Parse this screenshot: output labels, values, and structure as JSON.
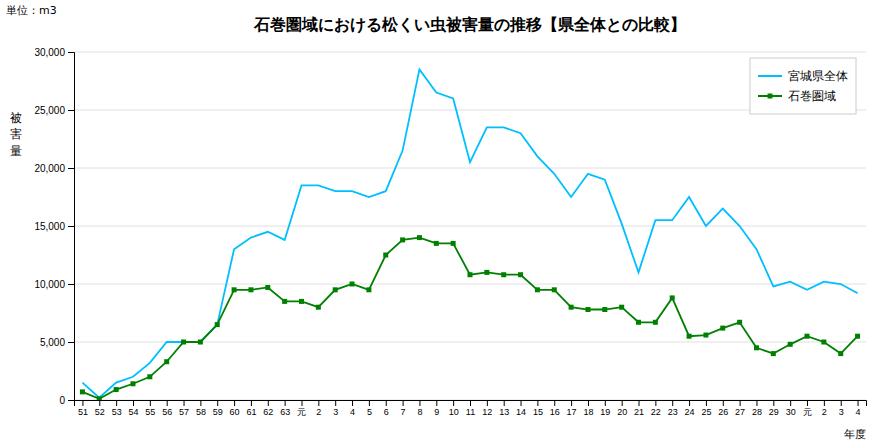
{
  "chart_data": {
    "type": "line",
    "title": "石巻圏域における松くい虫被害量の推移【県全体との比較】",
    "x_label": "年度",
    "y_label": "被\n害\n量",
    "unit_label": "単位：m3",
    "categories": [
      "51",
      "52",
      "53",
      "54",
      "55",
      "56",
      "57",
      "58",
      "59",
      "60",
      "61",
      "62",
      "63",
      "元",
      "2",
      "3",
      "4",
      "5",
      "6",
      "7",
      "8",
      "9",
      "10",
      "11",
      "12",
      "13",
      "14",
      "15",
      "16",
      "17",
      "18",
      "19",
      "20",
      "21",
      "22",
      "23",
      "24",
      "25",
      "26",
      "27",
      "28",
      "29",
      "30",
      "元",
      "2",
      "3",
      "4"
    ],
    "series": [
      {
        "name": "宮城県全体",
        "color": "#00BFFF",
        "marker": "none",
        "values": [
          1500,
          200,
          1500,
          2000,
          3200,
          5000,
          5000,
          5000,
          6500,
          13000,
          14000,
          14500,
          13800,
          18500,
          18500,
          18000,
          18000,
          17500,
          18000,
          21500,
          28500,
          26500,
          26000,
          20500,
          23500,
          23500,
          23000,
          21000,
          19500,
          17500,
          19500,
          19000,
          15200,
          11000,
          15500,
          15500,
          17500,
          15000,
          16500,
          15000,
          13000,
          9800,
          10200,
          9500,
          10200,
          10000,
          9200
        ]
      },
      {
        "name": "石巻圏域",
        "color": "#008000",
        "marker": "square",
        "values": [
          700,
          100,
          900,
          1400,
          2000,
          3300,
          5000,
          5000,
          6500,
          9500,
          9500,
          9700,
          8500,
          8500,
          8000,
          9500,
          10000,
          9500,
          12500,
          13800,
          14000,
          13500,
          13500,
          10800,
          11000,
          10800,
          10800,
          9500,
          9500,
          8000,
          7800,
          7800,
          8000,
          6700,
          6700,
          8800,
          5500,
          5600,
          6200,
          6700,
          4500,
          4000,
          4800,
          5500,
          5000,
          4000,
          5500
        ]
      }
    ],
    "ylim": [
      0,
      30000
    ],
    "yticks": [
      0,
      {
        "value": 5000,
        "label": "5,000"
      },
      {
        "value": 10000,
        "label": "10,000"
      },
      {
        "value": 15000,
        "label": "15,000"
      },
      {
        "value": 20000,
        "label": "20,000"
      },
      {
        "value": 25000,
        "label": "25,000"
      },
      {
        "value": 30000,
        "label": "30,000"
      }
    ],
    "grid": true,
    "legend": "upper right"
  }
}
